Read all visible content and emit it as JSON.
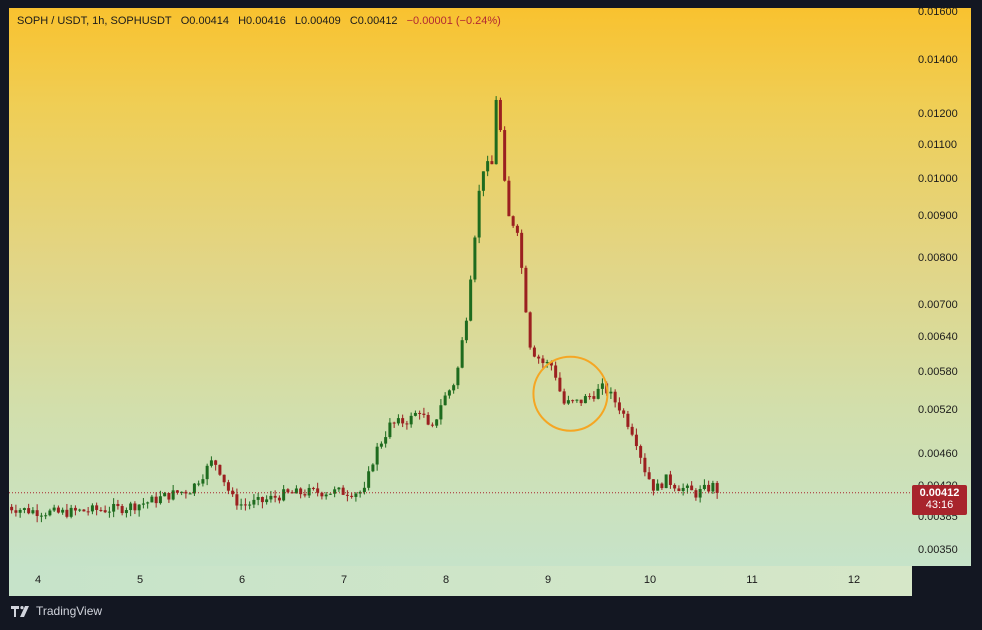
{
  "legend": {
    "symbol": "SOPH / USDT, 1h, SOPHUSDT",
    "open": "O0.00414",
    "high": "H0.00416",
    "low": "L0.00409",
    "close": "C0.00412",
    "change": "−0.00001 (−0.24%)"
  },
  "last_price": {
    "value": "0.00412",
    "countdown": "43:16"
  },
  "branding": "TradingView",
  "colors": {
    "up": "#1e6b1e",
    "down": "#9b2020",
    "highlight": "#f5a623",
    "last_price": "#a8242c"
  },
  "chart_data": {
    "type": "candlestick",
    "scale": "log",
    "ylim": [
      0.00335,
      0.0162
    ],
    "y_ticks": [
      "0.01600",
      "0.01400",
      "0.01200",
      "0.01100",
      "0.01000",
      "0.00900",
      "0.00800",
      "0.00700",
      "0.00640",
      "0.00580",
      "0.00520",
      "0.00460",
      "0.00420",
      "0.00385",
      "0.00350"
    ],
    "x_ticks": [
      "4",
      "5",
      "6",
      "7",
      "8",
      "9",
      "10",
      "11",
      "12"
    ],
    "last_price": 0.00412,
    "highlight": {
      "x": 9.22,
      "y": 0.00545,
      "label": ""
    },
    "anchors": [
      [
        3.7,
        0.00396
      ],
      [
        3.9,
        0.00392
      ],
      [
        4.2,
        0.00389
      ],
      [
        4.5,
        0.00392
      ],
      [
        4.8,
        0.00394
      ],
      [
        5.1,
        0.00402
      ],
      [
        5.3,
        0.0041
      ],
      [
        5.5,
        0.00416
      ],
      [
        5.65,
        0.0044
      ],
      [
        5.72,
        0.00452
      ],
      [
        5.78,
        0.0044
      ],
      [
        5.9,
        0.00406
      ],
      [
        6.0,
        0.00398
      ],
      [
        6.2,
        0.00402
      ],
      [
        6.4,
        0.0041
      ],
      [
        6.7,
        0.00413
      ],
      [
        7.0,
        0.00413
      ],
      [
        7.2,
        0.00413
      ],
      [
        7.3,
        0.0046
      ],
      [
        7.45,
        0.00498
      ],
      [
        7.65,
        0.00507
      ],
      [
        7.75,
        0.00522
      ],
      [
        7.85,
        0.00485
      ],
      [
        7.95,
        0.0053
      ],
      [
        8.1,
        0.00568
      ],
      [
        8.2,
        0.0068
      ],
      [
        8.28,
        0.0085
      ],
      [
        8.35,
        0.0103
      ],
      [
        8.45,
        0.0104
      ],
      [
        8.5,
        0.01305
      ],
      [
        8.55,
        0.0107
      ],
      [
        8.6,
        0.009
      ],
      [
        8.7,
        0.0087
      ],
      [
        8.78,
        0.007
      ],
      [
        8.83,
        0.0062
      ],
      [
        8.95,
        0.00595
      ],
      [
        9.05,
        0.0059
      ],
      [
        9.15,
        0.0053
      ],
      [
        9.3,
        0.00532
      ],
      [
        9.45,
        0.00545
      ],
      [
        9.55,
        0.00555
      ],
      [
        9.7,
        0.00525
      ],
      [
        9.85,
        0.00485
      ],
      [
        9.95,
        0.0044
      ],
      [
        10.05,
        0.00415
      ],
      [
        10.15,
        0.00428
      ],
      [
        10.3,
        0.00418
      ],
      [
        10.45,
        0.00411
      ],
      [
        10.62,
        0.0042
      ],
      [
        10.68,
        0.00412
      ]
    ]
  }
}
